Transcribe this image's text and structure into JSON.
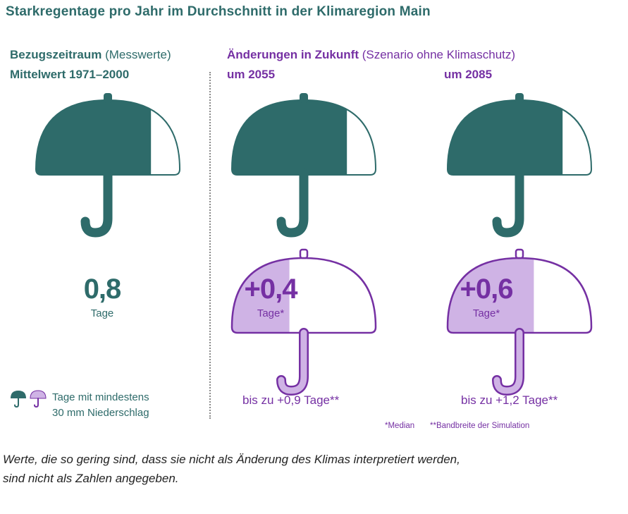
{
  "title": "Starkregentage pro Jahr im Durchschnitt in der Klimaregion Main",
  "reference": {
    "heading_bold": "Bezugszeitraum",
    "heading_normal": "(Messwerte)",
    "subheading": "Mittelwert 1971–2000",
    "value": "0,8",
    "unit": "Tage",
    "filled_fraction": 0.8
  },
  "future": {
    "heading_bold": "Änderungen in Zukunft",
    "heading_normal": "(Szenario ohne Klimaschutz)",
    "periods": [
      {
        "label": "um 2055",
        "base_fraction": 0.8,
        "change": "+0,4",
        "change_fraction": 0.4,
        "unit": "Tage*",
        "range": "bis zu +0,9 Tage**"
      },
      {
        "label": "um 2085",
        "base_fraction": 0.8,
        "change": "+0,6",
        "change_fraction": 0.6,
        "unit": "Tage*",
        "range": "bis zu +1,2 Tage**"
      }
    ]
  },
  "legend": {
    "line1": "Tage mit mindestens",
    "line2": "30 mm Niederschlag",
    "icon_base": "umbrella-filled-icon",
    "icon_change": "umbrella-change-icon"
  },
  "footnotes": {
    "median": "*Median",
    "range": "**Bandbreite der Simulation"
  },
  "note": {
    "line1": "Werte, die so gering sind, dass sie nicht als Änderung des Klimas interpretiert werden,",
    "line2": "sind nicht als Zahlen angegeben."
  },
  "colors": {
    "teal": "#2e6b6a",
    "purple": "#7530a3",
    "lilac": "#cfb3e5"
  }
}
